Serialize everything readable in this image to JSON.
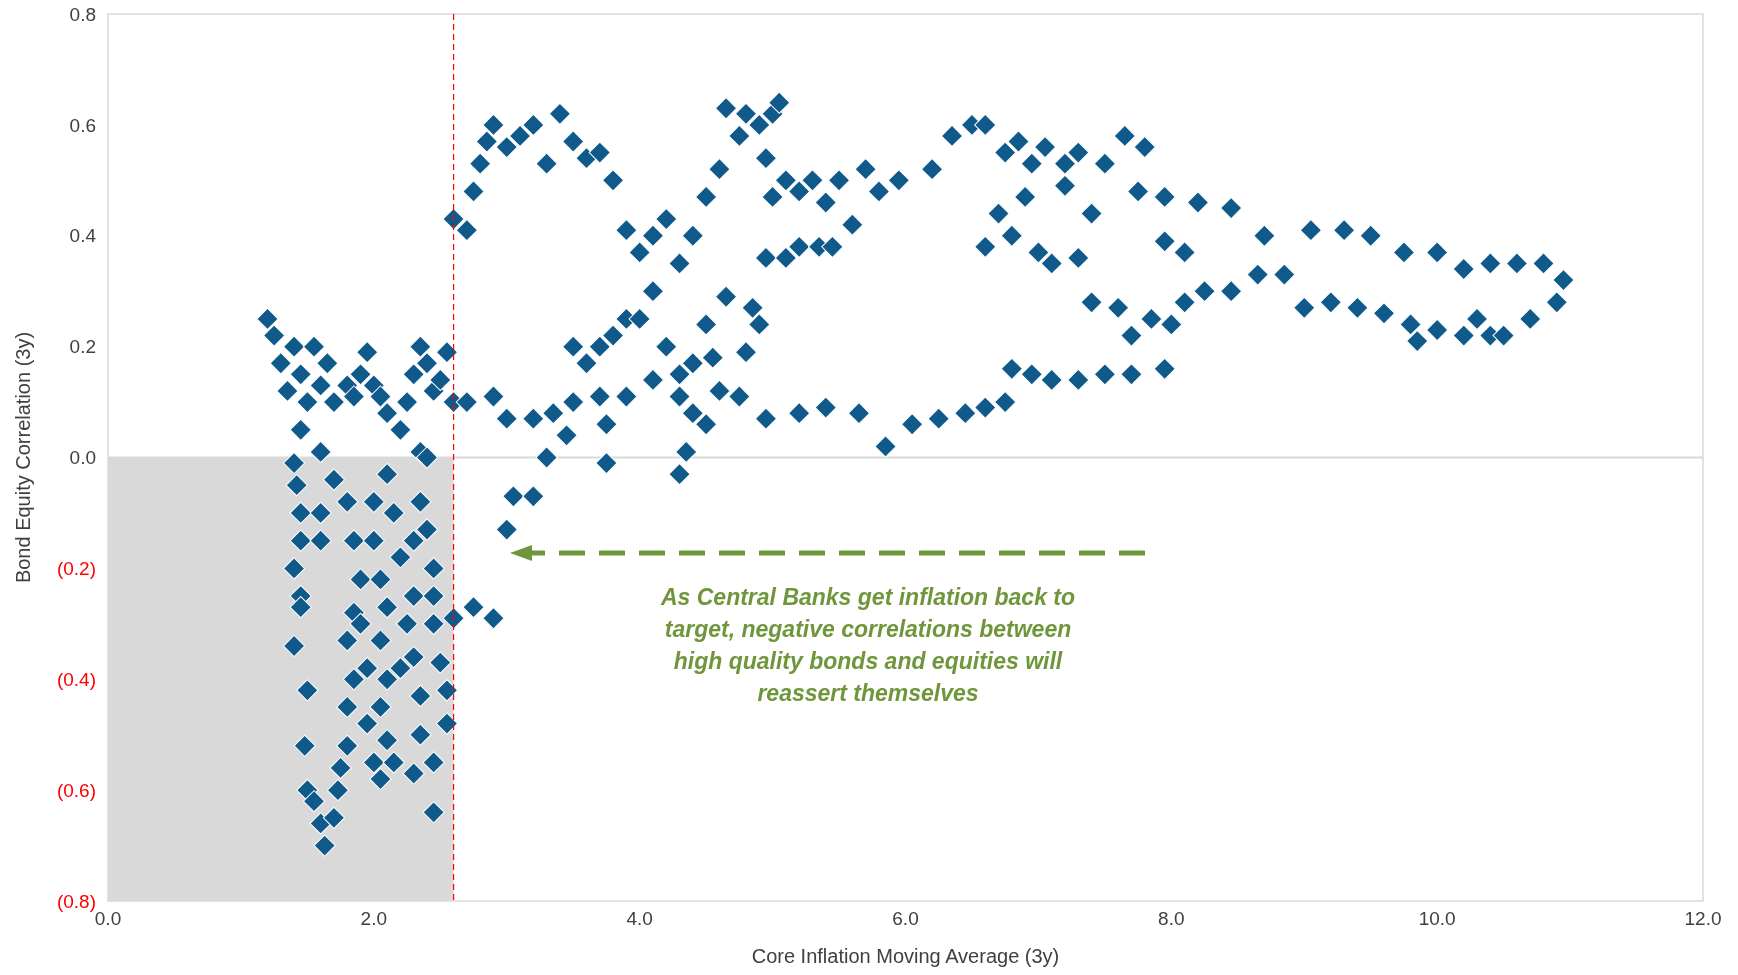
{
  "chart_data": {
    "type": "scatter",
    "xlabel": "Core Inflation Moving Average (3y)",
    "ylabel": "Bond Equity Correlation (3y)",
    "xlim": [
      0,
      12
    ],
    "ylim": [
      -0.8,
      0.8
    ],
    "xticks": [
      {
        "value": 0,
        "label": "0.0"
      },
      {
        "value": 2,
        "label": "2.0"
      },
      {
        "value": 4,
        "label": "4.0"
      },
      {
        "value": 6,
        "label": "6.0"
      },
      {
        "value": 8,
        "label": "8.0"
      },
      {
        "value": 10,
        "label": "10.0"
      },
      {
        "value": 12,
        "label": "12.0"
      }
    ],
    "yticks": [
      {
        "value": -0.8,
        "label": "(0.8)"
      },
      {
        "value": -0.6,
        "label": "(0.6)"
      },
      {
        "value": -0.4,
        "label": "(0.4)"
      },
      {
        "value": -0.2,
        "label": "(0.2)"
      },
      {
        "value": 0,
        "label": "0.0"
      },
      0.2,
      0.4,
      0.6,
      0.8
    ],
    "marker": "diamond",
    "grid": false,
    "ref_lines": [
      {
        "axis": "x",
        "value": 2.6,
        "color": "#ff0000",
        "line_style": "dashed"
      },
      {
        "axis": "y",
        "value": 0,
        "color": "#d9d9d9",
        "line_style": "solid"
      }
    ],
    "bands": [
      {
        "axis": "x",
        "from": 0,
        "to": 2.6,
        "color": "#d9d9d9"
      }
    ],
    "annotations": [
      "As Central Banks get inflation back to target, negative correlations between high quality bonds and equities will reassert themselves"
    ],
    "series": [
      {
        "color": "#0f5a8a",
        "x": [
          1.2,
          1.25,
          1.3,
          1.35,
          1.4,
          1.45,
          1.5,
          1.55,
          1.6,
          1.65,
          1.7,
          1.8,
          1.85,
          1.9,
          1.95,
          2.0,
          2.05,
          2.1,
          2.2,
          2.25,
          2.3,
          2.35,
          2.4,
          2.45,
          2.5,
          2.55,
          2.6,
          1.45,
          1.6,
          2.35,
          2.4,
          1.4,
          1.42,
          1.45,
          1.45,
          1.4,
          1.45,
          1.45,
          1.4,
          1.5,
          1.48,
          1.5,
          1.55,
          1.6,
          1.63,
          1.7,
          1.73,
          1.75,
          1.8,
          1.8,
          1.85,
          1.8,
          1.85,
          1.9,
          1.85,
          1.8,
          1.7,
          1.6,
          1.6,
          1.9,
          1.95,
          1.95,
          2.0,
          2.05,
          2.1,
          2.05,
          2.1,
          2.05,
          2.1,
          2.05,
          2.0,
          2.0,
          2.1,
          2.15,
          2.2,
          2.25,
          2.2,
          2.15,
          2.3,
          2.35,
          2.35,
          2.3,
          2.3,
          2.3,
          2.35,
          2.4,
          2.45,
          2.45,
          2.45,
          2.5,
          2.55,
          2.55,
          2.45,
          2.45,
          2.6,
          2.75,
          2.9,
          3.0,
          3.05,
          3.2,
          3.3,
          3.45,
          3.5,
          3.6,
          3.7,
          3.8,
          3.9,
          4.0,
          4.1,
          3.75,
          3.75,
          2.6,
          2.7,
          2.75,
          2.8,
          2.85,
          2.9,
          3.0,
          3.1,
          3.2,
          3.3,
          3.4,
          3.5,
          3.6,
          3.7,
          3.8,
          3.9,
          4.0,
          4.1,
          4.2,
          4.3,
          4.4,
          4.5,
          4.6,
          4.65,
          4.75,
          4.8,
          4.9,
          5.0,
          5.05,
          4.95,
          5.0,
          5.1,
          5.2,
          5.3,
          5.4,
          5.5,
          5.6,
          5.7,
          5.8,
          5.95,
          6.2,
          6.35,
          6.5,
          6.6,
          6.75,
          6.85,
          6.95,
          7.05,
          7.2,
          7.3,
          7.5,
          7.65,
          7.75,
          7.8,
          7.95,
          8.2,
          8.45,
          6.6,
          6.7,
          6.8,
          7.0,
          7.1,
          7.3,
          7.4,
          7.6,
          7.7,
          7.85,
          8.0,
          8.1,
          8.25,
          8.45,
          8.65,
          8.85,
          9.0,
          9.2,
          9.4,
          9.6,
          9.8,
          9.85,
          10.0,
          10.2,
          10.3,
          10.4,
          10.5,
          10.7,
          10.9,
          10.95,
          10.8,
          10.6,
          10.4,
          10.2,
          10.0,
          9.75,
          9.5,
          9.3,
          9.05,
          8.7,
          8.1,
          7.95,
          7.4,
          7.2,
          6.9,
          2.7,
          2.9,
          3.0,
          3.2,
          3.35,
          3.5,
          3.7,
          3.9,
          4.1,
          4.3,
          4.4,
          4.35,
          4.3,
          4.5,
          4.6,
          4.75,
          4.95,
          5.2,
          5.4,
          5.65,
          5.85,
          6.05,
          6.25,
          6.45,
          6.6,
          6.75,
          6.8,
          6.95,
          7.1,
          7.3,
          7.5,
          7.7,
          7.95,
          4.5,
          4.65,
          4.8,
          4.85,
          4.9,
          4.95,
          5.1,
          5.2,
          5.35,
          5.45,
          4.2,
          4.3,
          4.4,
          4.55
        ],
        "values": [
          0.25,
          0.22,
          0.17,
          0.12,
          0.2,
          0.15,
          0.1,
          0.2,
          0.13,
          0.17,
          0.1,
          0.13,
          0.11,
          0.15,
          0.19,
          0.13,
          0.11,
          0.08,
          0.05,
          0.1,
          0.15,
          0.2,
          0.17,
          0.12,
          0.14,
          0.19,
          0.1,
          0.05,
          0.01,
          0.01,
          0.0,
          -0.01,
          -0.05,
          -0.1,
          -0.15,
          -0.2,
          -0.25,
          -0.27,
          -0.34,
          -0.42,
          -0.52,
          -0.6,
          -0.62,
          -0.66,
          -0.7,
          -0.65,
          -0.6,
          -0.56,
          -0.52,
          -0.45,
          -0.4,
          -0.33,
          -0.28,
          -0.22,
          -0.15,
          -0.08,
          -0.04,
          -0.1,
          -0.15,
          -0.3,
          -0.38,
          -0.48,
          -0.55,
          -0.58,
          -0.51,
          -0.45,
          -0.4,
          -0.33,
          -0.27,
          -0.22,
          -0.15,
          -0.08,
          -0.03,
          -0.1,
          -0.18,
          -0.3,
          -0.38,
          -0.55,
          -0.57,
          -0.5,
          -0.43,
          -0.36,
          -0.25,
          -0.15,
          -0.08,
          -0.13,
          -0.2,
          -0.25,
          -0.3,
          -0.37,
          -0.42,
          -0.48,
          -0.55,
          -0.64,
          -0.29,
          -0.27,
          -0.29,
          -0.13,
          -0.07,
          -0.07,
          0.0,
          0.04,
          0.2,
          0.17,
          0.2,
          0.22,
          0.25,
          0.25,
          0.3,
          -0.01,
          0.06,
          0.43,
          0.41,
          0.48,
          0.53,
          0.57,
          0.6,
          0.56,
          0.58,
          0.6,
          0.53,
          0.62,
          0.57,
          0.54,
          0.55,
          0.5,
          0.41,
          0.37,
          0.4,
          0.43,
          0.35,
          0.4,
          0.47,
          0.52,
          0.63,
          0.58,
          0.62,
          0.6,
          0.62,
          0.64,
          0.54,
          0.47,
          0.5,
          0.48,
          0.5,
          0.46,
          0.5,
          0.42,
          0.52,
          0.48,
          0.5,
          0.52,
          0.58,
          0.6,
          0.6,
          0.55,
          0.57,
          0.53,
          0.56,
          0.53,
          0.55,
          0.53,
          0.58,
          0.48,
          0.56,
          0.47,
          0.46,
          0.45,
          0.38,
          0.44,
          0.4,
          0.37,
          0.35,
          0.36,
          0.28,
          0.27,
          0.22,
          0.25,
          0.24,
          0.28,
          0.3,
          0.3,
          0.33,
          0.33,
          0.27,
          0.28,
          0.27,
          0.26,
          0.24,
          0.21,
          0.23,
          0.22,
          0.25,
          0.22,
          0.22,
          0.25,
          0.28,
          0.32,
          0.35,
          0.35,
          0.35,
          0.34,
          0.37,
          0.37,
          0.4,
          0.41,
          0.41,
          0.4,
          0.37,
          0.39,
          0.44,
          0.49,
          0.47,
          0.1,
          0.11,
          0.07,
          0.07,
          0.08,
          0.1,
          0.11,
          0.11,
          0.14,
          0.11,
          0.08,
          0.01,
          -0.03,
          0.06,
          0.12,
          0.11,
          0.07,
          0.08,
          0.09,
          0.08,
          0.02,
          0.06,
          0.07,
          0.08,
          0.09,
          0.1,
          0.16,
          0.15,
          0.14,
          0.14,
          0.15,
          0.15,
          0.16,
          0.24,
          0.29,
          0.19,
          0.27,
          0.24,
          0.36,
          0.36,
          0.38,
          0.38,
          0.38,
          0.2,
          0.15,
          0.17,
          0.18
        ]
      }
    ]
  }
}
